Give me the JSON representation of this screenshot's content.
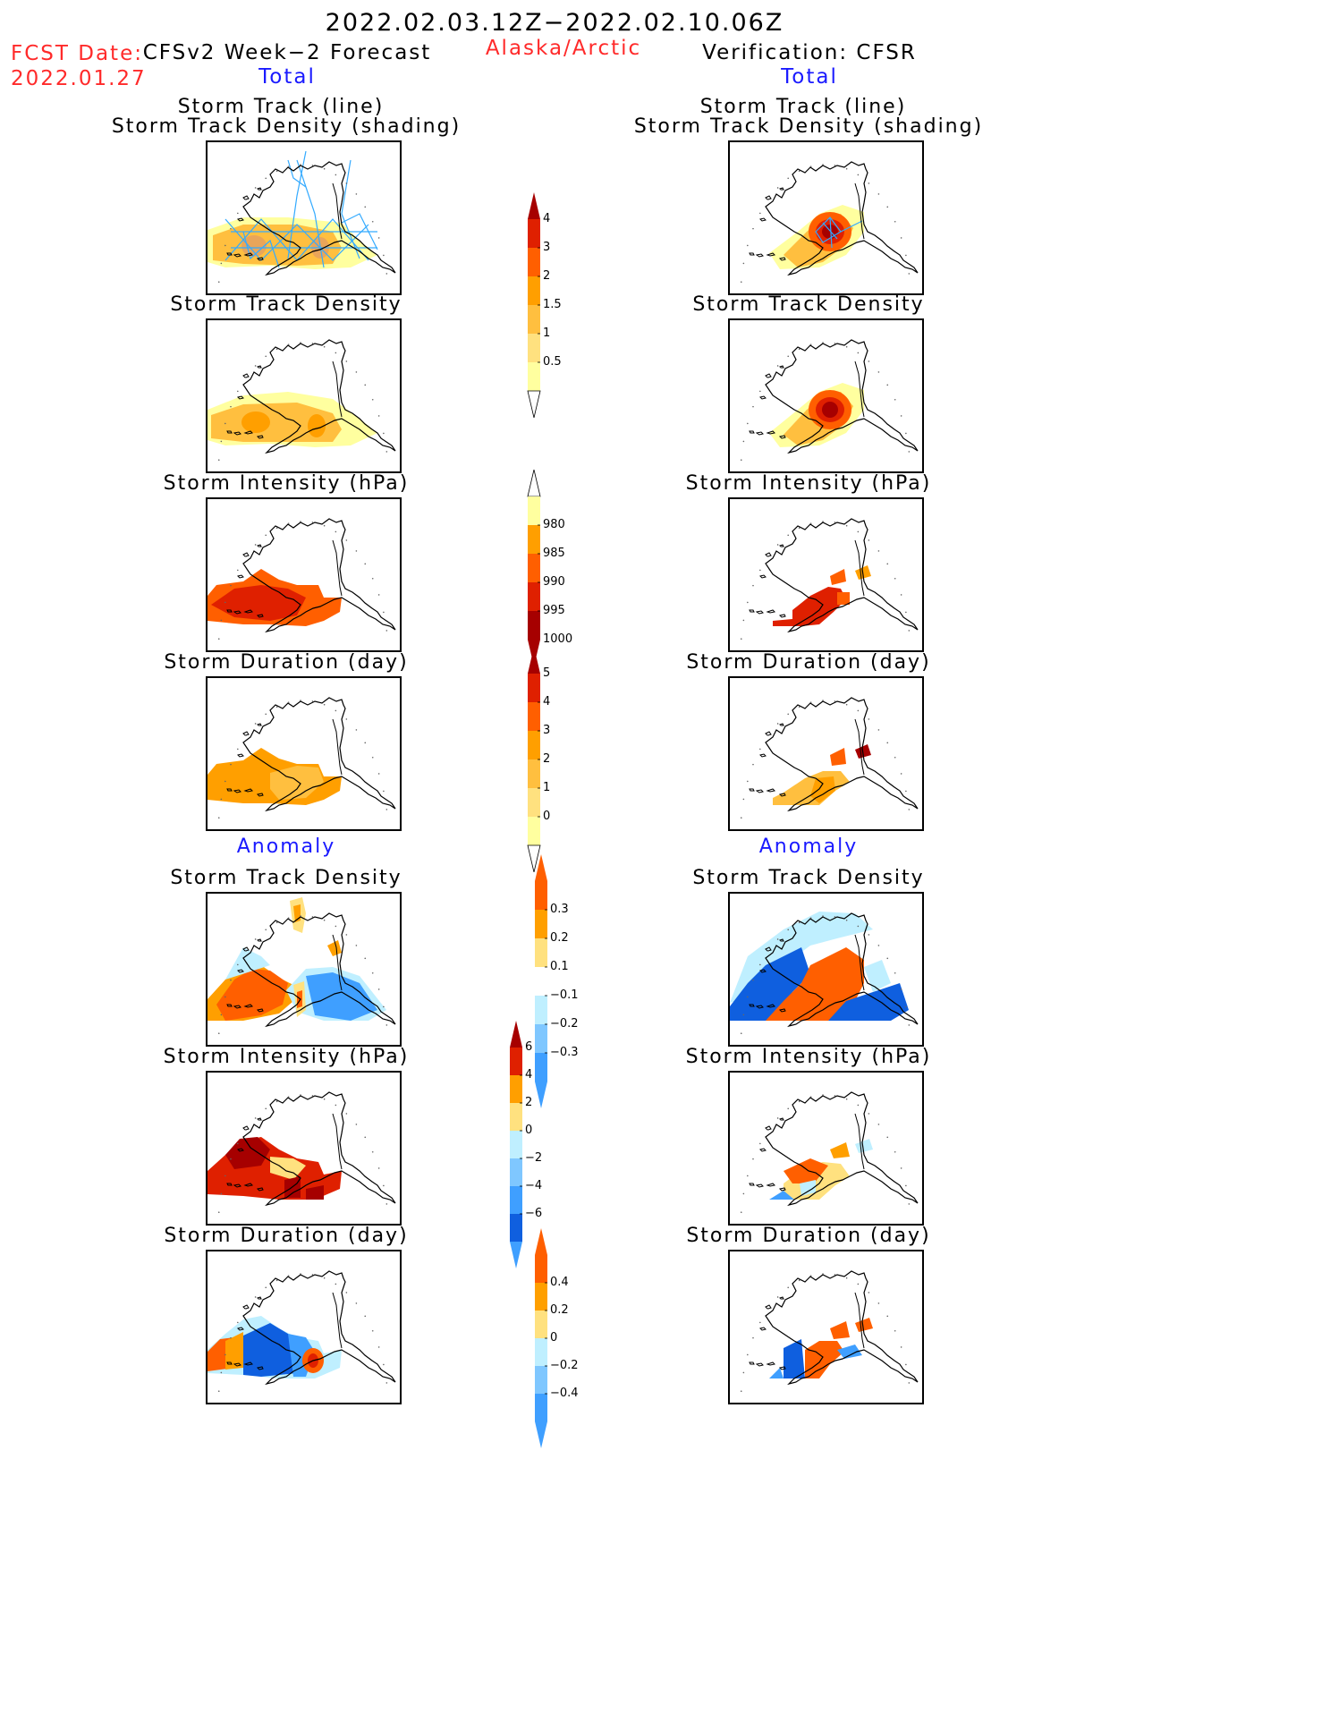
{
  "header": {
    "title": "2022.02.03.12Z−2022.02.10.06Z",
    "fcst_label": "FCST Date:",
    "fcst_date": "2022.01.27",
    "left_model": "CFSv2 Week−2 Forecast",
    "region": "Alaska/Arctic",
    "right_model": "Verification: CFSR"
  },
  "sections": {
    "total": "Total",
    "anomaly": "Anomaly"
  },
  "panels": {
    "track_line_title": "Storm Track (line)",
    "track_shade_title": "Storm Track Density (shading)",
    "density": "Storm Track Density",
    "intensity": "Storm Intensity (hPa)",
    "duration": "Storm Duration (day)"
  },
  "colorbars": {
    "density_total": [
      "0.5",
      "1",
      "1.5",
      "2",
      "3",
      "4"
    ],
    "intensity_total": [
      "980",
      "985",
      "990",
      "995",
      "1000"
    ],
    "duration_total": [
      "0",
      "1",
      "2",
      "3",
      "4",
      "5"
    ],
    "density_anom": [
      "−0.3",
      "−0.2",
      "−0.1",
      "0.1",
      "0.2",
      "0.3"
    ],
    "intensity_anom": [
      "−6",
      "−4",
      "−2",
      "0",
      "2",
      "4",
      "6"
    ],
    "duration_anom": [
      "−0.4",
      "−0.2",
      "0",
      "0.2",
      "0.4"
    ]
  },
  "colors": {
    "yellow_pale": "#ffff9f",
    "yellow": "#ffe17f",
    "orange_light": "#ffbf3f",
    "orange": "#ff9f00",
    "red_orange": "#ff5f00",
    "red": "#df2000",
    "dark_red": "#a60000",
    "light_blue": "#bfefff",
    "mid_blue": "#7fc7ff",
    "blue": "#3f9fff",
    "dark_blue": "#0f5fdf",
    "track_line": "#33aaff"
  }
}
